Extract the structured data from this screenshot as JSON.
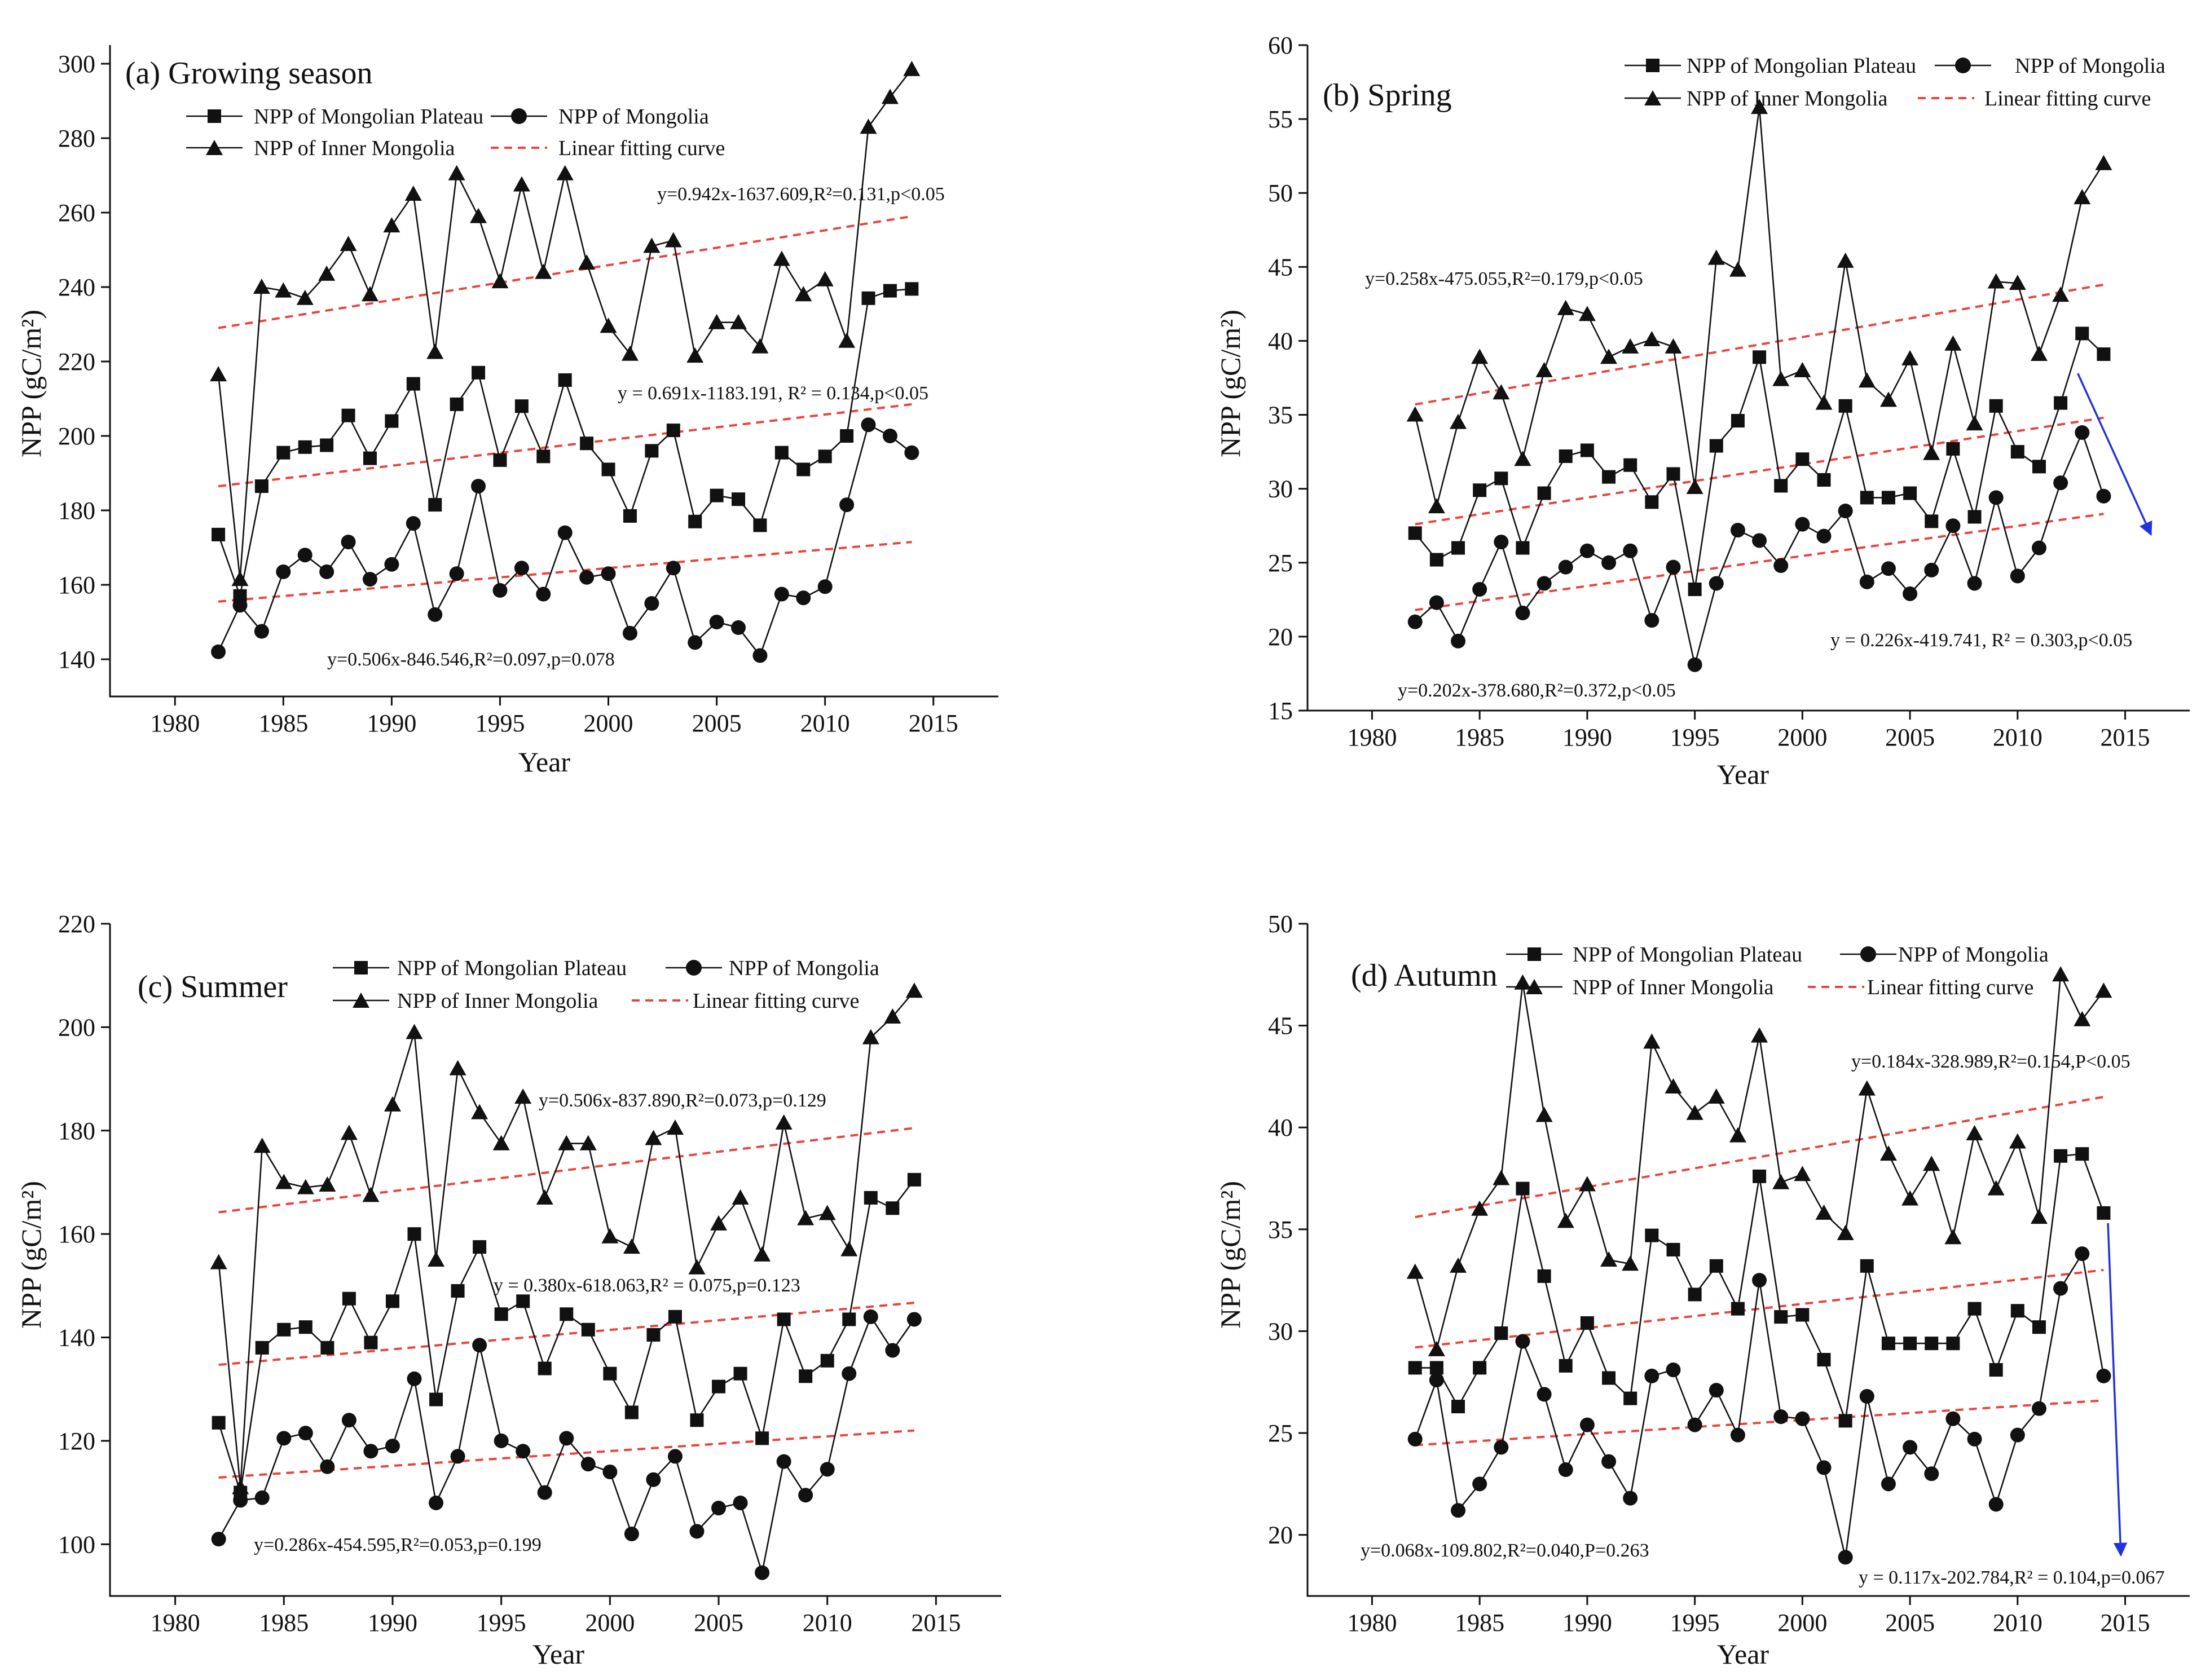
{
  "chart_data": [
    {
      "type": "line",
      "title": "(a) Growing season",
      "xlabel": "Year",
      "ylabel": "NPP (gC/m²)",
      "xlim": [
        1977,
        2018
      ],
      "ylim": [
        130,
        305
      ],
      "xticks": [
        1980,
        1985,
        1990,
        1995,
        2000,
        2005,
        2010,
        2015
      ],
      "yticks": [
        140,
        160,
        180,
        200,
        220,
        240,
        260,
        280,
        300
      ],
      "legend": [
        "NPP of Mongolian Plateau",
        "NPP of Mongolia",
        "NPP of Inner Mongolia",
        "Linear fitting curve"
      ],
      "legend_placement": "top",
      "x": [
        1982,
        1983,
        1984,
        1985,
        1986,
        1987,
        1988,
        1989,
        1990,
        1991,
        1992,
        1993,
        1994,
        1995,
        1996,
        1997,
        1998,
        1999,
        2000,
        2001,
        2002,
        2003,
        2004,
        2005,
        2006,
        2007,
        2008,
        2009,
        2010,
        2011,
        2012,
        2013,
        2014
      ],
      "series": [
        {
          "name": "NPP of Mongolian Plateau",
          "marker": "square",
          "values": [
            173.5,
            157,
            186.5,
            195.5,
            197,
            197.5,
            205.5,
            194,
            204,
            214,
            181.5,
            208.5,
            217,
            193.5,
            208,
            194.5,
            215,
            198,
            191,
            178.5,
            196,
            201.5,
            177,
            184,
            183,
            176,
            195.5,
            191,
            194.5,
            200,
            237,
            239,
            239.5
          ]
        },
        {
          "name": "NPP of Mongolia",
          "marker": "circle",
          "values": [
            142,
            154.5,
            147.5,
            163.5,
            168,
            163.5,
            171.5,
            161.5,
            165.5,
            176.5,
            152,
            163,
            186.5,
            158.5,
            164.5,
            157.5,
            174,
            162,
            163,
            147,
            155,
            164.5,
            144.5,
            150,
            148.5,
            141,
            157.5,
            156.5,
            159.5,
            181.5,
            203,
            200,
            195.5
          ]
        },
        {
          "name": "NPP of Inner Mongolia",
          "marker": "triangle",
          "values": [
            216.5,
            161.5,
            240,
            239,
            237,
            243.5,
            251.5,
            238,
            256.5,
            265,
            222.5,
            270.5,
            259,
            241.5,
            267.5,
            244,
            270.5,
            246.5,
            229.5,
            222,
            251,
            252.5,
            221.5,
            230.5,
            230.5,
            224,
            247.5,
            238,
            242,
            225.5,
            283,
            291,
            298.5
          ]
        }
      ],
      "fits": [
        {
          "label": "y=0.942x-1637.609,R²=0.131,p<0.05",
          "from": [
            1982,
            229
          ],
          "to": [
            2014,
            259
          ]
        },
        {
          "label": "y = 0.691x-1183.191, R² = 0.134,p<0.05",
          "from": [
            1982,
            186.5
          ],
          "to": [
            2014,
            208.5
          ]
        },
        {
          "label": "y=0.506x-846.546,R²=0.097,p=0.078",
          "from": [
            1982,
            155.5
          ],
          "to": [
            2014,
            171.5
          ]
        }
      ],
      "arrow": null
    },
    {
      "type": "line",
      "title": "(b) Spring",
      "xlabel": "Year",
      "ylabel": "NPP (gC/m²)",
      "xlim": [
        1977,
        2018
      ],
      "ylim": [
        15,
        60
      ],
      "xticks": [
        1980,
        1985,
        1990,
        1995,
        2000,
        2005,
        2010,
        2015
      ],
      "yticks": [
        15,
        20,
        25,
        30,
        35,
        40,
        45,
        50,
        55,
        60
      ],
      "legend": [
        "NPP of Mongolian Plateau",
        "NPP of Mongolia",
        "NPP of Inner Mongolia",
        "Linear fitting curve"
      ],
      "legend_placement": "top",
      "x": [
        1982,
        1983,
        1984,
        1985,
        1986,
        1987,
        1988,
        1989,
        1990,
        1991,
        1992,
        1993,
        1994,
        1995,
        1996,
        1997,
        1998,
        1999,
        2000,
        2001,
        2002,
        2003,
        2004,
        2005,
        2006,
        2007,
        2008,
        2009,
        2010,
        2011,
        2012,
        2013,
        2014
      ],
      "series": [
        {
          "name": "NPP of Mongolian Plateau",
          "marker": "square",
          "values": [
            27,
            25.2,
            26,
            29.9,
            30.7,
            26,
            29.7,
            32.2,
            32.6,
            30.8,
            31.6,
            29.1,
            31,
            23.2,
            32.9,
            34.6,
            38.9,
            30.2,
            32,
            30.6,
            35.6,
            29.4,
            29.4,
            29.7,
            27.8,
            32.7,
            28.1,
            35.6,
            32.5,
            31.5,
            35.8,
            40.5,
            39.1
          ]
        },
        {
          "name": "NPP of Mongolia",
          "marker": "circle",
          "values": [
            21,
            22.3,
            19.7,
            23.2,
            26.4,
            21.6,
            23.6,
            24.7,
            25.8,
            25,
            25.8,
            21.1,
            24.7,
            18.1,
            23.6,
            27.2,
            26.5,
            24.8,
            27.6,
            26.8,
            28.5,
            23.7,
            24.6,
            22.9,
            24.5,
            27.5,
            23.6,
            29.4,
            24.1,
            26,
            30.4,
            33.8,
            29.5
          ]
        },
        {
          "name": "NPP of Inner Mongolia",
          "marker": "triangle",
          "values": [
            35,
            28.8,
            34.5,
            38.9,
            36.5,
            32,
            38,
            42.2,
            41.8,
            38.9,
            39.6,
            40.1,
            39.6,
            30.1,
            45.6,
            44.8,
            55.8,
            37.4,
            38,
            35.8,
            45.4,
            37.3,
            36,
            38.8,
            32.4,
            39.8,
            34.4,
            44,
            43.9,
            39.1,
            43.1,
            49.7,
            52
          ]
        }
      ],
      "fits": [
        {
          "label": "y=0.258x-475.055,R²=0.179,p<0.05",
          "from": [
            1982,
            35.7
          ],
          "to": [
            2014,
            43.8
          ]
        },
        {
          "label": "y = 0.226x-419.741, R² = 0.303,p<0.05",
          "from": [
            1982,
            27.6
          ],
          "to": [
            2014,
            34.8
          ]
        },
        {
          "label": "y=0.202x-378.680,R²=0.372,p<0.05",
          "from": [
            1982,
            21.8
          ],
          "to": [
            2014,
            28.3
          ]
        }
      ],
      "arrow": {
        "from": [
          2012.8,
          37.8
        ],
        "to": [
          2016.2,
          26.9
        ],
        "color": "#2233dd"
      }
    },
    {
      "type": "line",
      "title": "(c) Summer",
      "xlabel": "Year",
      "ylabel": "NPP (gC/m²)",
      "xlim": [
        1977,
        2018
      ],
      "ylim": [
        90,
        220
      ],
      "xticks": [
        1980,
        1985,
        1990,
        1995,
        2000,
        2005,
        2010,
        2015
      ],
      "yticks": [
        100,
        120,
        140,
        160,
        180,
        200,
        220
      ],
      "legend": [
        "NPP of Mongolian Plateau",
        "NPP of Mongolia",
        "NPP of Inner Mongolia",
        "Linear fitting curve"
      ],
      "legend_placement": "top",
      "x": [
        1982,
        1983,
        1984,
        1985,
        1986,
        1987,
        1988,
        1989,
        1990,
        1991,
        1992,
        1993,
        1994,
        1995,
        1996,
        1997,
        1998,
        1999,
        2000,
        2001,
        2002,
        2003,
        2004,
        2005,
        2006,
        2007,
        2008,
        2009,
        2010,
        2011,
        2012,
        2013,
        2014
      ],
      "series": [
        {
          "name": "NPP of Mongolian Plateau",
          "marker": "square",
          "values": [
            123.5,
            110,
            138,
            141.5,
            142,
            138,
            147.5,
            139,
            147,
            160,
            128,
            149,
            157.5,
            144.5,
            147,
            134,
            144.5,
            141.5,
            133,
            125.5,
            140.5,
            144,
            124,
            130.5,
            133,
            120.5,
            143.5,
            132.5,
            135.5,
            143.5,
            167,
            165,
            170.5
          ]
        },
        {
          "name": "NPP of Mongolia",
          "marker": "circle",
          "values": [
            101,
            108.5,
            109,
            120.5,
            121.5,
            115,
            124,
            118,
            119,
            132,
            108,
            117,
            138.5,
            120,
            118,
            110,
            120.5,
            115.5,
            114,
            102,
            112.5,
            117,
            102.5,
            107,
            108,
            94.5,
            116,
            109.5,
            114.5,
            133,
            144,
            137.5,
            143.5
          ]
        },
        {
          "name": "NPP of Inner Mongolia",
          "marker": "triangle",
          "values": [
            154.5,
            111,
            177,
            170,
            169,
            169.5,
            179.5,
            167.5,
            185,
            199,
            155,
            192,
            183.5,
            177.5,
            186.5,
            167,
            177.5,
            177.5,
            159.5,
            157.5,
            178.5,
            180.5,
            153.5,
            162,
            167,
            156,
            181.5,
            163,
            164,
            157,
            198,
            202,
            207
          ]
        }
      ],
      "fits": [
        {
          "label": "y=0.506x-837.890,R²=0.073,p=0.129",
          "from": [
            1982,
            164.2
          ],
          "to": [
            2014,
            180.5
          ]
        },
        {
          "label": "y = 0.380x-618.063,R² = 0.075,p=0.123",
          "from": [
            1982,
            134.7
          ],
          "to": [
            2014,
            146.7
          ]
        },
        {
          "label": "y=0.286x-454.595,R²=0.053,p=0.199",
          "from": [
            1982,
            112.9
          ],
          "to": [
            2014,
            122
          ]
        }
      ],
      "arrow": null
    },
    {
      "type": "line",
      "title": "(d) Autumn",
      "xlabel": "Year",
      "ylabel": "NPP (gC/m²)",
      "xlim": [
        1977,
        2018
      ],
      "ylim": [
        17,
        50
      ],
      "xticks": [
        1980,
        1985,
        1990,
        1995,
        2000,
        2005,
        2010,
        2015
      ],
      "yticks": [
        20,
        25,
        30,
        35,
        40,
        45,
        50
      ],
      "legend": [
        "NPP of Mongolian Plateau",
        "NPP of Mongolia",
        "NPP of Inner Mongolia",
        "Linear fitting curve"
      ],
      "legend_placement": "top",
      "x": [
        1982,
        1983,
        1984,
        1985,
        1986,
        1987,
        1988,
        1989,
        1990,
        1991,
        1992,
        1993,
        1994,
        1995,
        1996,
        1997,
        1998,
        1999,
        2000,
        2001,
        2002,
        2003,
        2004,
        2005,
        2006,
        2007,
        2008,
        2009,
        2010,
        2011,
        2012,
        2013,
        2014
      ],
      "series": [
        {
          "name": "NPP of Mongolian Plateau",
          "marker": "square",
          "values": [
            28.2,
            28.2,
            26.3,
            28.2,
            29.9,
            37,
            32.7,
            28.3,
            30.4,
            27.7,
            26.7,
            34.7,
            34,
            31.8,
            33.2,
            31.1,
            37.6,
            30.7,
            30.8,
            28.6,
            25.6,
            33.2,
            29.4,
            29.4,
            29.4,
            29.4,
            31.1,
            28.1,
            31,
            30.2,
            38.6,
            38.7,
            35.8
          ]
        },
        {
          "name": "NPP of Mongolia",
          "marker": "circle",
          "values": [
            24.7,
            27.6,
            21.2,
            22.5,
            24.3,
            29.5,
            26.9,
            23.2,
            25.4,
            23.6,
            21.8,
            27.8,
            28.1,
            25.4,
            27.1,
            24.9,
            32.5,
            25.8,
            25.7,
            23.3,
            18.9,
            26.8,
            22.5,
            24.3,
            23,
            25.7,
            24.7,
            21.5,
            24.9,
            26.2,
            32.1,
            33.8,
            27.8
          ]
        },
        {
          "name": "NPP of Inner Mongolia",
          "marker": "triangle",
          "values": [
            32.9,
            29.1,
            33.2,
            36,
            37.5,
            47.1,
            40.6,
            35.4,
            37.2,
            33.5,
            33.3,
            44.2,
            42,
            40.7,
            41.5,
            39.6,
            44.5,
            37.3,
            37.7,
            35.8,
            34.8,
            41.9,
            38.7,
            36.5,
            38.2,
            34.6,
            39.7,
            37,
            39.3,
            35.6,
            47.5,
            45.3,
            46.7
          ]
        }
      ],
      "fits": [
        {
          "label": "y=0.184x-328.989,R²=0.154,P<0.05",
          "from": [
            1982,
            35.6
          ],
          "to": [
            2014,
            41.5
          ]
        },
        {
          "label": "y = 0.117x-202.784,R² = 0.104,p=0.067",
          "from": [
            1982,
            29.2
          ],
          "to": [
            2014,
            33
          ]
        },
        {
          "label": "y=0.068x-109.802,R²=0.040,P=0.263",
          "from": [
            1982,
            24.4
          ],
          "to": [
            2014,
            26.6
          ]
        }
      ],
      "arrow": {
        "from": [
          2014.2,
          35.3
        ],
        "to": [
          2014.8,
          19
        ]
      }
    }
  ]
}
